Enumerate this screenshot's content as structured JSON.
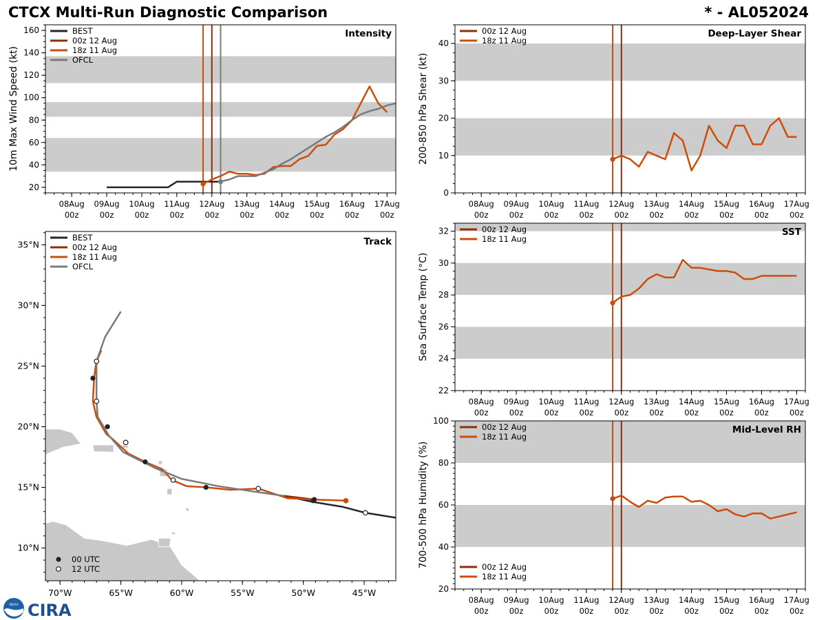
{
  "title_left": "CTCX Multi-Run Diagnostic Comparison",
  "title_right": "* - AL052024",
  "logo_text": "CIRA",
  "logo_badge": "NOAA",
  "colors": {
    "best": "#262626",
    "run00z": "#8b2e0a",
    "run18z": "#cc4c0a",
    "ofcl": "#7a7a7a",
    "band": "#cccccc",
    "land": "#c8c8c8"
  },
  "time_ticks": [
    {
      "label1": "08Aug",
      "label2": "00z"
    },
    {
      "label1": "09Aug",
      "label2": "00z"
    },
    {
      "label1": "10Aug",
      "label2": "00z"
    },
    {
      "label1": "11Aug",
      "label2": "00z"
    },
    {
      "label1": "12Aug",
      "label2": "00z"
    },
    {
      "label1": "13Aug",
      "label2": "00z"
    },
    {
      "label1": "14Aug",
      "label2": "00z"
    },
    {
      "label1": "15Aug",
      "label2": "00z"
    },
    {
      "label1": "16Aug",
      "label2": "00z"
    },
    {
      "label1": "17Aug",
      "label2": "00z"
    }
  ],
  "chart_data": [
    {
      "id": "intensity",
      "type": "line",
      "title": "Intensity",
      "xlabel": "",
      "ylabel": "10m Max Wind Speed (kt)",
      "xlim_days": [
        -0.75,
        9.25
      ],
      "ylim": [
        15,
        165
      ],
      "yticks": [
        20,
        40,
        60,
        80,
        100,
        120,
        140,
        160
      ],
      "bands": [
        [
          34,
          64
        ],
        [
          83,
          96
        ],
        [
          113,
          137
        ]
      ],
      "init_lines": [
        {
          "run": "18z 11 Aug",
          "day": 3.75
        },
        {
          "run": "00z 12 Aug",
          "day": 4.0
        },
        {
          "run": "OFCL",
          "day": 4.25
        }
      ],
      "legend": [
        "BEST",
        "00z 12 Aug",
        "18z 11 Aug",
        "OFCL"
      ],
      "series": [
        {
          "name": "BEST",
          "x_days": [
            1,
            1.25,
            1.5,
            1.75,
            2,
            2.25,
            2.5,
            2.75,
            3,
            3.25,
            3.5,
            3.75,
            4,
            4.25
          ],
          "values": [
            20,
            20,
            20,
            20,
            20,
            20,
            20,
            20,
            25,
            25,
            25,
            25,
            25,
            25
          ]
        },
        {
          "name": "18z 11 Aug",
          "x_days": [
            3.75,
            4,
            4.25,
            4.5,
            4.75,
            5,
            5.25,
            5.5,
            5.75,
            6,
            6.25,
            6.5,
            6.75,
            7,
            7.25,
            7.5,
            7.75,
            8,
            8.25,
            8.5,
            8.75,
            9
          ],
          "values": [
            23,
            27,
            30,
            34,
            32,
            32,
            31,
            32,
            38,
            39,
            39,
            45,
            48,
            57,
            58,
            67,
            72,
            80,
            95,
            110,
            95,
            87
          ]
        },
        {
          "name": "OFCL",
          "x_days": [
            4.25,
            4.5,
            4.75,
            5,
            5.25,
            5.5,
            5.75,
            6,
            6.25,
            6.5,
            6.75,
            7,
            7.25,
            7.5,
            7.75,
            8,
            8.25,
            8.5,
            8.75,
            9,
            9.25
          ],
          "values": [
            25,
            27,
            30,
            30,
            30,
            33,
            36,
            41,
            45,
            50,
            55,
            60,
            65,
            69,
            74,
            80,
            85,
            88,
            90,
            93,
            95
          ]
        }
      ],
      "markers": [
        {
          "series": "18z 11 Aug",
          "x_day": 3.75,
          "value": 23
        },
        {
          "series": "OFCL",
          "x_day": 4.25,
          "value": 25
        }
      ]
    },
    {
      "id": "shear",
      "type": "line",
      "title": "Deep-Layer Shear",
      "xlabel": "",
      "ylabel": "200-850 hPa Shear (kt)",
      "xlim_days": [
        -0.75,
        9.25
      ],
      "ylim": [
        0,
        45
      ],
      "yticks": [
        0,
        10,
        20,
        30,
        40
      ],
      "bands": [
        [
          10,
          20
        ],
        [
          30,
          40
        ]
      ],
      "init_lines": [
        {
          "run": "18z 11 Aug",
          "day": 3.75
        },
        {
          "run": "00z 12 Aug",
          "day": 4.0
        }
      ],
      "legend": [
        "00z 12 Aug",
        "18z 11 Aug"
      ],
      "series": [
        {
          "name": "18z 11 Aug",
          "x_days": [
            3.75,
            4,
            4.25,
            4.5,
            4.75,
            5,
            5.25,
            5.5,
            5.75,
            6,
            6.25,
            6.5,
            6.75,
            7,
            7.25,
            7.5,
            7.75,
            8,
            8.25,
            8.5,
            8.75,
            9
          ],
          "values": [
            9,
            10,
            9,
            7,
            11,
            10,
            9,
            16,
            14,
            6,
            10,
            18,
            14,
            12,
            18,
            18,
            13,
            13,
            18,
            20,
            15,
            15
          ]
        }
      ],
      "markers": [
        {
          "series": "18z 11 Aug",
          "x_day": 3.75,
          "value": 9
        }
      ]
    },
    {
      "id": "sst",
      "type": "line",
      "title": "SST",
      "xlabel": "",
      "ylabel": "Sea Surface Temp (°C)",
      "xlim_days": [
        -0.75,
        9.25
      ],
      "ylim": [
        22,
        32.5
      ],
      "yticks": [
        22,
        24,
        26,
        28,
        30,
        32
      ],
      "bands": [
        [
          24,
          26
        ],
        [
          28,
          30
        ],
        [
          32,
          34
        ]
      ],
      "init_lines": [
        {
          "run": "18z 11 Aug",
          "day": 3.75
        },
        {
          "run": "00z 12 Aug",
          "day": 4.0
        }
      ],
      "legend": [
        "00z 12 Aug",
        "18z 11 Aug"
      ],
      "series": [
        {
          "name": "18z 11 Aug",
          "x_days": [
            3.75,
            4,
            4.25,
            4.5,
            4.75,
            5,
            5.25,
            5.5,
            5.75,
            6,
            6.25,
            6.5,
            6.75,
            7,
            7.25,
            7.5,
            7.75,
            8,
            8.25,
            8.5,
            8.75,
            9
          ],
          "values": [
            27.5,
            27.9,
            28.0,
            28.4,
            29.0,
            29.3,
            29.1,
            29.1,
            30.2,
            29.7,
            29.7,
            29.6,
            29.5,
            29.5,
            29.4,
            29.0,
            29.0,
            29.2,
            29.2,
            29.2,
            29.2,
            29.2
          ]
        }
      ],
      "markers": [
        {
          "series": "18z 11 Aug",
          "x_day": 3.75,
          "value": 27.5
        }
      ]
    },
    {
      "id": "rh",
      "type": "line",
      "title": "Mid-Level RH",
      "xlabel": "",
      "ylabel": "700-500 hPa Humidity (%)",
      "xlim_days": [
        -0.75,
        9.25
      ],
      "ylim": [
        20,
        100
      ],
      "yticks": [
        20,
        40,
        60,
        80,
        100
      ],
      "bands": [
        [
          40,
          60
        ],
        [
          80,
          100
        ]
      ],
      "init_lines": [
        {
          "run": "18z 11 Aug",
          "day": 3.75
        },
        {
          "run": "00z 12 Aug",
          "day": 4.0
        }
      ],
      "legend": [
        "00z 12 Aug",
        "18z 11 Aug"
      ],
      "series": [
        {
          "name": "18z 11 Aug",
          "x_days": [
            3.75,
            4,
            4.25,
            4.5,
            4.75,
            5,
            5.25,
            5.5,
            5.75,
            6,
            6.25,
            6.5,
            6.75,
            7,
            7.25,
            7.5,
            7.75,
            8,
            8.25,
            8.5,
            8.75,
            9
          ],
          "values": [
            63,
            64.5,
            61.5,
            59,
            62,
            61,
            63.5,
            64,
            64,
            61.5,
            62,
            60,
            57,
            58,
            55.5,
            54.5,
            56,
            56,
            53.5,
            54.5,
            55.5,
            56.5
          ]
        }
      ],
      "markers": [
        {
          "series": "18z 11 Aug",
          "x_day": 3.75,
          "value": 63
        }
      ]
    },
    {
      "id": "track",
      "type": "line",
      "title": "Track",
      "xlabel": "",
      "ylabel": "",
      "lon_range": [
        -71.2,
        -42.4
      ],
      "lat_range": [
        7.3,
        36.1
      ],
      "lon_ticks": [
        -70,
        -65,
        -60,
        -55,
        -50,
        -45
      ],
      "lon_tick_labels": [
        "70°W",
        "65°W",
        "60°W",
        "55°W",
        "50°W",
        "45°W"
      ],
      "lat_ticks": [
        10,
        15,
        20,
        25,
        30,
        35
      ],
      "lat_tick_labels": [
        "10°N",
        "15°N",
        "20°N",
        "25°N",
        "30°N",
        "35°N"
      ],
      "legend": [
        "BEST",
        "00z 12 Aug",
        "18z 11 Aug",
        "OFCL"
      ],
      "marker_legend": [
        "00 UTC",
        "12 UTC"
      ],
      "series": [
        {
          "name": "BEST",
          "lon": [
            -42.4,
            -44.9,
            -46.8,
            -49.2,
            -51.6
          ],
          "lat": [
            12.5,
            12.9,
            13.4,
            13.8,
            14.3
          ]
        },
        {
          "name": "00z 12 Aug",
          "lon": [
            -49.1,
            -51.6
          ],
          "lat": [
            14.0,
            14.3
          ]
        },
        {
          "name": "18z 11 Aug",
          "lon": [
            -46.5,
            -49.2,
            -51.3,
            -53.7,
            -56.0,
            -58.0,
            -59.6,
            -60.8,
            -61.6,
            -63.0,
            -64.4,
            -65.7,
            -66.2,
            -67.0,
            -67.3,
            -67.2,
            -67.1,
            -67.0,
            -66.6
          ],
          "lat": [
            13.9,
            14.0,
            14.1,
            14.9,
            14.8,
            15.0,
            15.1,
            15.6,
            16.5,
            17.1,
            17.8,
            19.0,
            19.4,
            20.8,
            22.1,
            24.0,
            24.8,
            25.4,
            26.3
          ]
        },
        {
          "name": "OFCL",
          "lon": [
            -51.6,
            -53.7,
            -57.0,
            -60.0,
            -62.2,
            -64.8,
            -66.0,
            -66.9,
            -67.0,
            -67.0,
            -66.3,
            -65.0
          ],
          "lat": [
            14.3,
            14.6,
            15.1,
            15.7,
            16.6,
            17.9,
            19.3,
            20.8,
            22.1,
            25.4,
            27.4,
            29.5
          ]
        }
      ],
      "points_00utc": [
        {
          "lon": -49.2,
          "lat": 13.9
        },
        {
          "lon": -49.1,
          "lat": 14.0
        },
        {
          "lon": -58.0,
          "lat": 15.0
        },
        {
          "lon": -63.0,
          "lat": 17.1
        },
        {
          "lon": -66.1,
          "lat": 20.0
        },
        {
          "lon": -67.3,
          "lat": 24.0
        }
      ],
      "points_12utc": [
        {
          "lon": -44.9,
          "lat": 12.9
        },
        {
          "lon": -53.7,
          "lat": 14.9
        },
        {
          "lon": -60.7,
          "lat": 15.6
        },
        {
          "lon": -64.6,
          "lat": 18.7
        },
        {
          "lon": -67.0,
          "lat": 22.1
        },
        {
          "lon": -67.0,
          "lat": 25.4
        }
      ],
      "start_marker": {
        "series": "18z 11 Aug",
        "lon": -46.5,
        "lat": 13.9
      }
    }
  ]
}
